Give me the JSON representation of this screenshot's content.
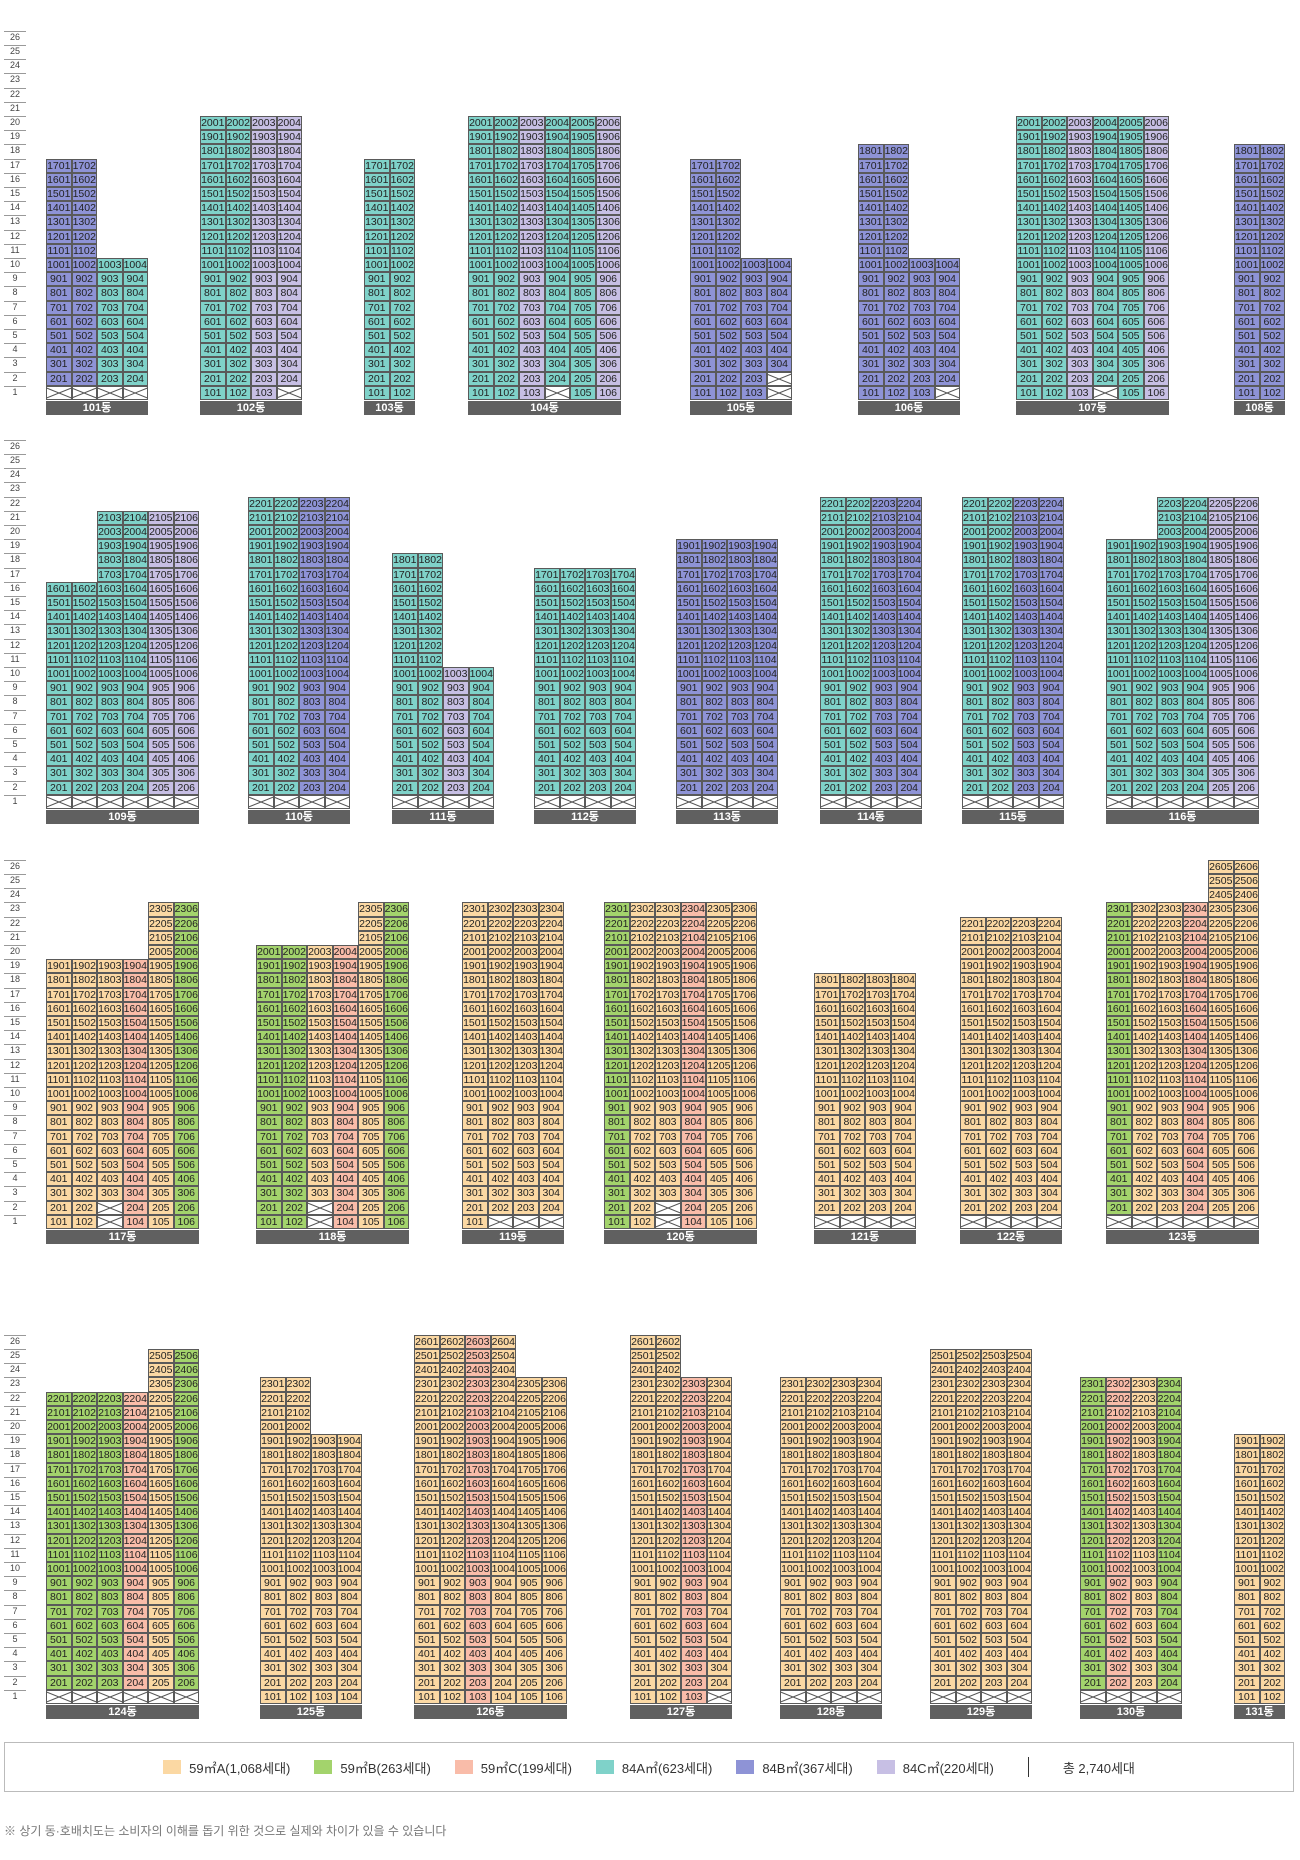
{
  "legend": {
    "items": [
      {
        "label": "59㎡A(1,068세대)",
        "color": "#FBD8A3"
      },
      {
        "label": "59㎡B(263세대)",
        "color": "#A3D36C"
      },
      {
        "label": "59㎡C(199세대)",
        "color": "#F9BCA9"
      },
      {
        "label": "84A㎡(623세대)",
        "color": "#7FD2C9"
      },
      {
        "label": "84B㎡(367세대)",
        "color": "#8E93D6"
      },
      {
        "label": "84C㎡(220세대)",
        "color": "#C7BFE4"
      }
    ],
    "total": "총 2,740세대"
  },
  "note": "※ 상기 동·호배치도는 소비자의 이해를 돕기 위한 것으로 실제와 차이가 있을 수 있습니다",
  "buildings": [
    {
      "name": "101동",
      "cols": [
        {
          "top": 17,
          "color": "#8E93D6",
          "voids": [
            1
          ]
        },
        {
          "top": 17,
          "color": "#8E93D6",
          "voids": [
            1
          ]
        },
        {
          "top": 10,
          "color": "#7FD2C9",
          "voids": [
            1
          ]
        },
        {
          "top": 10,
          "color": "#7FD2C9",
          "voids": [
            1
          ]
        }
      ]
    },
    {
      "name": "102동",
      "cols": [
        {
          "top": 20,
          "color": "#7FD2C9",
          "voids": []
        },
        {
          "top": 20,
          "color": "#7FD2C9",
          "voids": []
        },
        {
          "top": 20,
          "color": "#C7BFE4",
          "voids": []
        },
        {
          "top": 20,
          "color": "#C7BFE4",
          "voids": [
            1
          ]
        }
      ]
    },
    {
      "name": "103동",
      "cols": [
        {
          "top": 17,
          "color": "#7FD2C9",
          "voids": []
        },
        {
          "top": 17,
          "color": "#7FD2C9",
          "voids": []
        }
      ]
    },
    {
      "name": "104동",
      "cols": [
        {
          "top": 20,
          "color": "#7FD2C9",
          "voids": []
        },
        {
          "top": 20,
          "color": "#7FD2C9",
          "voids": []
        },
        {
          "top": 20,
          "color": "#C7BFE4",
          "voids": []
        },
        {
          "top": 20,
          "color": "#7FD2C9",
          "voids": [
            1
          ]
        },
        {
          "top": 20,
          "color": "#7FD2C9",
          "voids": []
        },
        {
          "top": 20,
          "color": "#C7BFE4",
          "voids": []
        }
      ]
    },
    {
      "name": "105동",
      "cols": [
        {
          "top": 17,
          "color": "#8E93D6",
          "voids": []
        },
        {
          "top": 17,
          "color": "#8E93D6",
          "voids": []
        },
        {
          "top": 10,
          "color": "#8E93D6",
          "voids": []
        },
        {
          "top": 10,
          "color": "#8E93D6",
          "voids": [
            1,
            2
          ]
        }
      ]
    },
    {
      "name": "106동",
      "cols": [
        {
          "top": 18,
          "color": "#8E93D6",
          "voids": []
        },
        {
          "top": 18,
          "color": "#8E93D6",
          "voids": []
        },
        {
          "top": 10,
          "color": "#8E93D6",
          "voids": []
        },
        {
          "top": 10,
          "color": "#8E93D6",
          "voids": [
            1
          ]
        }
      ]
    },
    {
      "name": "107동",
      "cols": [
        {
          "top": 20,
          "color": "#7FD2C9",
          "voids": []
        },
        {
          "top": 20,
          "color": "#7FD2C9",
          "voids": []
        },
        {
          "top": 20,
          "color": "#C7BFE4",
          "voids": []
        },
        {
          "top": 20,
          "color": "#7FD2C9",
          "voids": [
            1
          ]
        },
        {
          "top": 20,
          "color": "#7FD2C9",
          "voids": []
        },
        {
          "top": 20,
          "color": "#C7BFE4",
          "voids": []
        }
      ]
    },
    {
      "name": "108동",
      "cols": [
        {
          "top": 18,
          "color": "#8E93D6",
          "voids": []
        },
        {
          "top": 18,
          "color": "#8E93D6",
          "voids": []
        }
      ]
    },
    {
      "name": "109동",
      "cols": [
        {
          "top": 16,
          "color": "#7FD2C9",
          "voids": [
            1
          ]
        },
        {
          "top": 16,
          "color": "#7FD2C9",
          "voids": [
            1
          ]
        },
        {
          "top": 21,
          "color": "#7FD2C9",
          "voids": [
            1
          ]
        },
        {
          "top": 21,
          "color": "#7FD2C9",
          "voids": [
            1
          ]
        },
        {
          "top": 21,
          "color": "#C7BFE4",
          "voids": [
            1
          ]
        },
        {
          "top": 21,
          "color": "#C7BFE4",
          "voids": [
            1
          ]
        }
      ]
    },
    {
      "name": "110동",
      "cols": [
        {
          "top": 22,
          "color": "#7FD2C9",
          "voids": [
            1
          ]
        },
        {
          "top": 22,
          "color": "#7FD2C9",
          "voids": [
            1
          ]
        },
        {
          "top": 22,
          "color": "#8E93D6",
          "voids": [
            1
          ]
        },
        {
          "top": 22,
          "color": "#8E93D6",
          "voids": [
            1
          ]
        }
      ]
    },
    {
      "name": "111동",
      "cols": [
        {
          "top": 18,
          "color": "#7FD2C9",
          "voids": [
            1
          ]
        },
        {
          "top": 18,
          "color": "#7FD2C9",
          "voids": [
            1
          ]
        },
        {
          "top": 10,
          "color": "#C7BFE4",
          "voids": [
            1
          ]
        },
        {
          "top": 10,
          "color": "#7FD2C9",
          "voids": [
            1
          ]
        }
      ]
    },
    {
      "name": "112동",
      "cols": [
        {
          "top": 17,
          "color": "#7FD2C9",
          "voids": [
            1
          ]
        },
        {
          "top": 17,
          "color": "#7FD2C9",
          "voids": [
            1
          ]
        },
        {
          "top": 17,
          "color": "#7FD2C9",
          "voids": [
            1
          ]
        },
        {
          "top": 17,
          "color": "#7FD2C9",
          "voids": [
            1
          ]
        }
      ]
    },
    {
      "name": "113동",
      "cols": [
        {
          "top": 19,
          "color": "#8E93D6",
          "voids": [
            1
          ]
        },
        {
          "top": 19,
          "color": "#8E93D6",
          "voids": [
            1
          ]
        },
        {
          "top": 19,
          "color": "#8E93D6",
          "voids": [
            1
          ]
        },
        {
          "top": 19,
          "color": "#8E93D6",
          "voids": [
            1
          ]
        }
      ]
    },
    {
      "name": "114동",
      "cols": [
        {
          "top": 22,
          "color": "#7FD2C9",
          "voids": [
            1
          ]
        },
        {
          "top": 22,
          "color": "#7FD2C9",
          "voids": [
            1
          ]
        },
        {
          "top": 22,
          "color": "#8E93D6",
          "voids": [
            1
          ]
        },
        {
          "top": 22,
          "color": "#8E93D6",
          "voids": [
            1
          ]
        }
      ]
    },
    {
      "name": "115동",
      "cols": [
        {
          "top": 22,
          "color": "#7FD2C9",
          "voids": [
            1
          ]
        },
        {
          "top": 22,
          "color": "#7FD2C9",
          "voids": [
            1
          ]
        },
        {
          "top": 22,
          "color": "#8E93D6",
          "voids": [
            1
          ]
        },
        {
          "top": 22,
          "color": "#8E93D6",
          "voids": [
            1
          ]
        }
      ]
    },
    {
      "name": "116동",
      "cols": [
        {
          "top": 19,
          "color": "#7FD2C9",
          "voids": [
            1
          ]
        },
        {
          "top": 19,
          "color": "#7FD2C9",
          "voids": [
            1
          ]
        },
        {
          "top": 22,
          "color": "#7FD2C9",
          "voids": [
            1
          ]
        },
        {
          "top": 22,
          "color": "#7FD2C9",
          "voids": [
            1
          ]
        },
        {
          "top": 22,
          "color": "#C7BFE4",
          "voids": [
            1
          ]
        },
        {
          "top": 22,
          "color": "#C7BFE4",
          "voids": [
            1
          ]
        }
      ]
    },
    {
      "name": "117동",
      "cols": [
        {
          "top": 19,
          "color": "#FBD8A3",
          "voids": []
        },
        {
          "top": 19,
          "color": "#FBD8A3",
          "voids": []
        },
        {
          "top": 19,
          "color": "#FBD8A3",
          "voids": [
            1,
            2
          ]
        },
        {
          "top": 19,
          "color": "#F9BCA9",
          "voids": []
        },
        {
          "top": 23,
          "color": "#FBD8A3",
          "voids": []
        },
        {
          "top": 23,
          "color": "#A3D36C",
          "voids": []
        }
      ]
    },
    {
      "name": "118동",
      "cols": [
        {
          "top": 20,
          "color": "#A3D36C",
          "voids": []
        },
        {
          "top": 20,
          "color": "#A3D36C",
          "voids": []
        },
        {
          "top": 20,
          "color": "#FBD8A3",
          "voids": [
            1,
            2
          ]
        },
        {
          "top": 20,
          "color": "#F9BCA9",
          "voids": []
        },
        {
          "top": 23,
          "color": "#FBD8A3",
          "voids": []
        },
        {
          "top": 23,
          "color": "#A3D36C",
          "voids": []
        }
      ]
    },
    {
      "name": "119동",
      "cols": [
        {
          "top": 23,
          "color": "#FBD8A3",
          "voids": []
        },
        {
          "top": 23,
          "color": "#FBD8A3",
          "voids": [
            1
          ]
        },
        {
          "top": 23,
          "color": "#FBD8A3",
          "voids": [
            1
          ]
        },
        {
          "top": 23,
          "color": "#FBD8A3",
          "voids": [
            1
          ]
        }
      ]
    },
    {
      "name": "120동",
      "cols": [
        {
          "top": 23,
          "color": "#A3D36C",
          "voids": []
        },
        {
          "top": 23,
          "color": "#FBD8A3",
          "voids": []
        },
        {
          "top": 23,
          "color": "#FBD8A3",
          "voids": [
            1,
            2
          ]
        },
        {
          "top": 23,
          "color": "#F9BCA9",
          "voids": []
        },
        {
          "top": 23,
          "color": "#FBD8A3",
          "voids": []
        },
        {
          "top": 23,
          "color": "#FBD8A3",
          "voids": []
        }
      ]
    },
    {
      "name": "121동",
      "cols": [
        {
          "top": 18,
          "color": "#FBD8A3",
          "voids": [
            1
          ]
        },
        {
          "top": 18,
          "color": "#FBD8A3",
          "voids": [
            1
          ]
        },
        {
          "top": 18,
          "color": "#FBD8A3",
          "voids": [
            1
          ]
        },
        {
          "top": 18,
          "color": "#FBD8A3",
          "voids": [
            1
          ]
        }
      ]
    },
    {
      "name": "122동",
      "cols": [
        {
          "top": 22,
          "color": "#FBD8A3",
          "voids": [
            1
          ]
        },
        {
          "top": 22,
          "color": "#FBD8A3",
          "voids": [
            1
          ]
        },
        {
          "top": 22,
          "color": "#FBD8A3",
          "voids": [
            1
          ]
        },
        {
          "top": 22,
          "color": "#FBD8A3",
          "voids": [
            1
          ]
        }
      ]
    },
    {
      "name": "123동",
      "cols": [
        {
          "top": 23,
          "color": "#A3D36C",
          "voids": [
            1
          ]
        },
        {
          "top": 23,
          "color": "#FBD8A3",
          "voids": [
            1
          ]
        },
        {
          "top": 23,
          "color": "#FBD8A3",
          "voids": [
            1
          ]
        },
        {
          "top": 23,
          "color": "#F9BCA9",
          "voids": [
            1
          ]
        },
        {
          "top": 26,
          "color": "#FBD8A3",
          "voids": [
            1
          ]
        },
        {
          "top": 26,
          "color": "#FBD8A3",
          "voids": [
            1
          ]
        }
      ]
    },
    {
      "name": "124동",
      "cols": [
        {
          "top": 22,
          "color": "#A3D36C",
          "voids": [
            1
          ]
        },
        {
          "top": 22,
          "color": "#A3D36C",
          "voids": [
            1
          ]
        },
        {
          "top": 22,
          "color": "#A3D36C",
          "voids": [
            1
          ]
        },
        {
          "top": 22,
          "color": "#F9BCA9",
          "voids": [
            1
          ]
        },
        {
          "top": 25,
          "color": "#FBD8A3",
          "voids": [
            1
          ]
        },
        {
          "top": 25,
          "color": "#A3D36C",
          "voids": [
            1
          ]
        }
      ]
    },
    {
      "name": "125동",
      "cols": [
        {
          "top": 23,
          "color": "#FBD8A3",
          "voids": []
        },
        {
          "top": 23,
          "color": "#FBD8A3",
          "voids": []
        },
        {
          "top": 19,
          "color": "#FBD8A3",
          "voids": []
        },
        {
          "top": 19,
          "color": "#FBD8A3",
          "voids": []
        }
      ]
    },
    {
      "name": "126동",
      "cols": [
        {
          "top": 26,
          "color": "#FBD8A3",
          "voids": []
        },
        {
          "top": 26,
          "color": "#FBD8A3",
          "voids": []
        },
        {
          "top": 26,
          "color": "#F9BCA9",
          "voids": []
        },
        {
          "top": 26,
          "color": "#FBD8A3",
          "voids": []
        },
        {
          "top": 23,
          "color": "#FBD8A3",
          "voids": []
        },
        {
          "top": 23,
          "color": "#FBD8A3",
          "voids": []
        }
      ]
    },
    {
      "name": "127동",
      "cols": [
        {
          "top": 26,
          "color": "#FBD8A3",
          "voids": []
        },
        {
          "top": 26,
          "color": "#FBD8A3",
          "voids": []
        },
        {
          "top": 23,
          "color": "#F9BCA9",
          "voids": []
        },
        {
          "top": 23,
          "color": "#FBD8A3",
          "voids": [
            1
          ]
        }
      ]
    },
    {
      "name": "128동",
      "cols": [
        {
          "top": 23,
          "color": "#FBD8A3",
          "voids": [
            1
          ]
        },
        {
          "top": 23,
          "color": "#FBD8A3",
          "voids": [
            1
          ]
        },
        {
          "top": 23,
          "color": "#FBD8A3",
          "voids": [
            1
          ]
        },
        {
          "top": 23,
          "color": "#FBD8A3",
          "voids": [
            1
          ]
        }
      ]
    },
    {
      "name": "129동",
      "cols": [
        {
          "top": 25,
          "color": "#FBD8A3",
          "voids": [
            1
          ]
        },
        {
          "top": 25,
          "color": "#FBD8A3",
          "voids": [
            1
          ]
        },
        {
          "top": 25,
          "color": "#FBD8A3",
          "voids": [
            1
          ]
        },
        {
          "top": 25,
          "color": "#FBD8A3",
          "voids": [
            1
          ]
        }
      ]
    },
    {
      "name": "130동",
      "cols": [
        {
          "top": 23,
          "color": "#A3D36C",
          "voids": [
            1
          ]
        },
        {
          "top": 23,
          "color": "#F9BCA9",
          "voids": [
            1
          ]
        },
        {
          "top": 23,
          "color": "#FBD8A3",
          "voids": [
            1
          ]
        },
        {
          "top": 23,
          "color": "#A3D36C",
          "voids": [
            1
          ]
        }
      ]
    },
    {
      "name": "131동",
      "cols": [
        {
          "top": 19,
          "color": "#FBD8A3",
          "voids": []
        },
        {
          "top": 19,
          "color": "#FBD8A3",
          "voids": []
        }
      ]
    }
  ]
}
